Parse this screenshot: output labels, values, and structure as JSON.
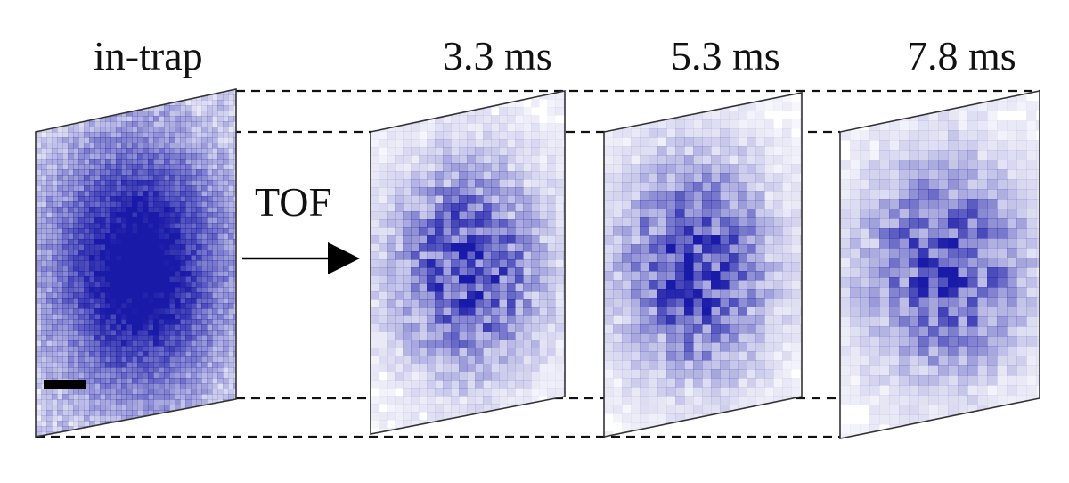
{
  "panels": [
    {
      "label": "in-trap",
      "density": "dense",
      "has_scale_bar": true
    },
    {
      "label": "3.3 ms",
      "density": "speckled",
      "has_scale_bar": false
    },
    {
      "label": "5.3 ms",
      "density": "speckled",
      "has_scale_bar": false
    },
    {
      "label": "7.8 ms",
      "density": "speckled",
      "has_scale_bar": false
    }
  ],
  "arrow_label": "TOF",
  "colors": {
    "atom_density": "#1a1aa8",
    "background": "#ffffff",
    "frame": "#333333",
    "guide_lines": "#111111"
  }
}
